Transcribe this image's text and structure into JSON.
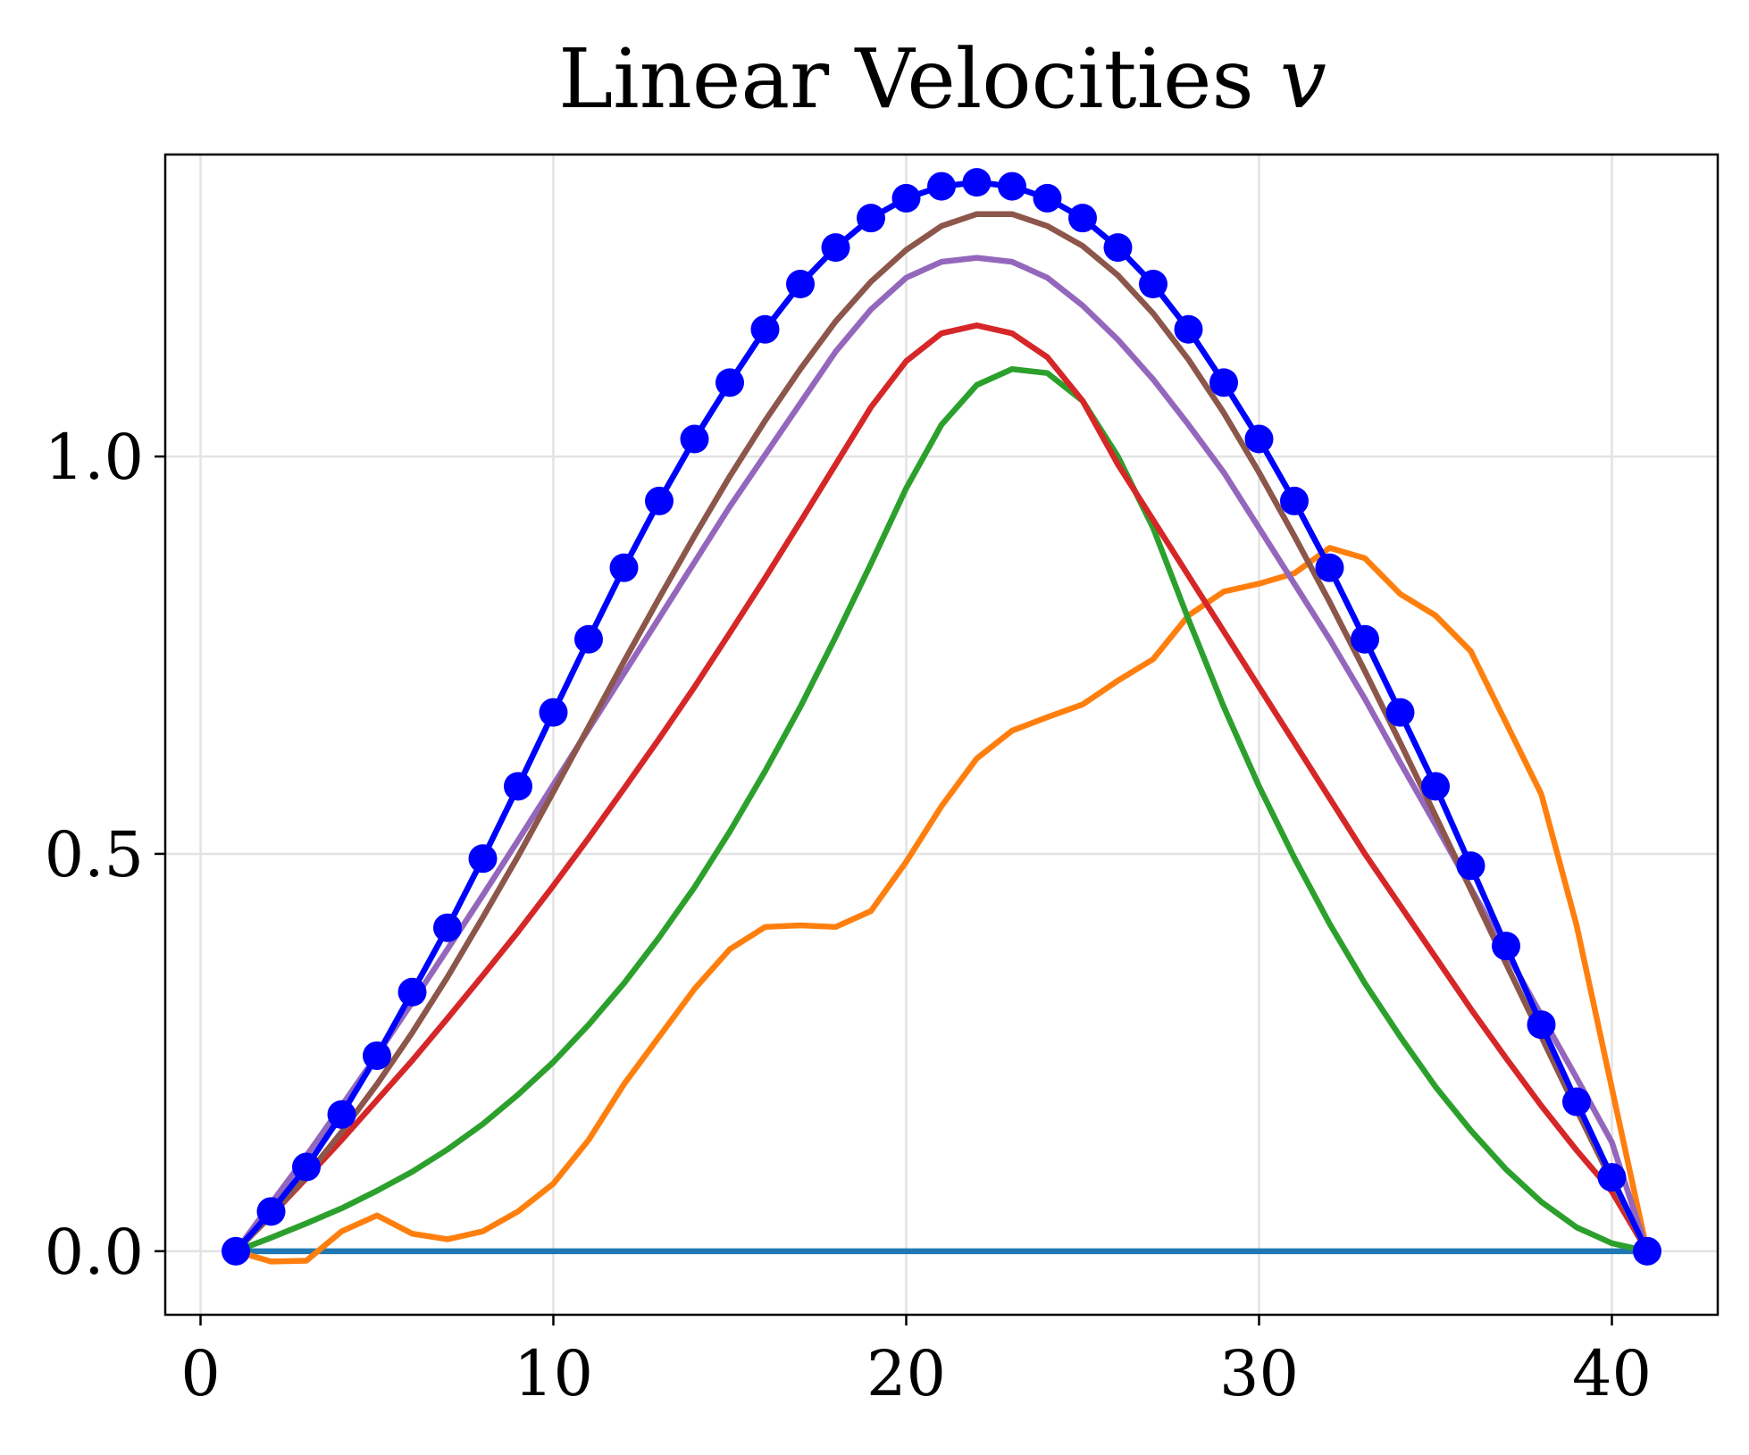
{
  "chart_data": {
    "type": "line",
    "title": "Linear Velocities",
    "title_variable": "v",
    "xlabel": "",
    "ylabel": "",
    "xlim": [
      -1,
      43
    ],
    "ylim": [
      -0.08,
      1.38
    ],
    "xticks": [
      0,
      10,
      20,
      30,
      40
    ],
    "yticks": [
      0.0,
      0.5,
      1.0
    ],
    "xtick_labels": [
      "0",
      "10",
      "20",
      "30",
      "40"
    ],
    "ytick_labels": [
      "0.0",
      "0.5",
      "1.0"
    ],
    "grid": true,
    "legend": "none",
    "x": [
      1,
      2,
      3,
      4,
      5,
      6,
      7,
      8,
      9,
      10,
      11,
      12,
      13,
      14,
      15,
      16,
      17,
      18,
      19,
      20,
      21,
      22,
      23,
      24,
      25,
      26,
      27,
      28,
      29,
      30,
      31,
      32,
      33,
      34,
      35,
      36,
      37,
      38,
      39,
      40,
      41
    ],
    "series": [
      {
        "color": "#1f77b4",
        "values": [
          0,
          0,
          0,
          0,
          0,
          0,
          0,
          0,
          0,
          0,
          0,
          0,
          0,
          0,
          0,
          0,
          0,
          0,
          0,
          0,
          0,
          0,
          0,
          0,
          0,
          0,
          0,
          0,
          0,
          0,
          0,
          0,
          0,
          0,
          0,
          0,
          0,
          0,
          0,
          0,
          0
        ]
      },
      {
        "color": "#ff7f0e",
        "values": [
          0,
          -0.013,
          -0.012,
          0.025,
          0.045,
          0.022,
          0.015,
          0.025,
          0.05,
          0.085,
          0.14,
          0.21,
          0.27,
          0.33,
          0.38,
          0.408,
          0.41,
          0.408,
          0.428,
          0.49,
          0.56,
          0.62,
          0.655,
          0.672,
          0.688,
          0.718,
          0.745,
          0.8,
          0.83,
          0.84,
          0.853,
          0.885,
          0.872,
          0.827,
          0.8,
          0.755,
          0.665,
          0.575,
          0.41,
          0.205,
          0
        ]
      },
      {
        "color": "#2ca02c",
        "values": [
          0,
          0.017,
          0.035,
          0.054,
          0.076,
          0.1,
          0.128,
          0.16,
          0.197,
          0.238,
          0.285,
          0.337,
          0.395,
          0.458,
          0.528,
          0.604,
          0.685,
          0.773,
          0.865,
          0.96,
          1.04,
          1.09,
          1.11,
          1.105,
          1.07,
          1.0,
          0.91,
          0.795,
          0.685,
          0.585,
          0.495,
          0.412,
          0.337,
          0.27,
          0.207,
          0.152,
          0.103,
          0.062,
          0.03,
          0.01,
          0
        ]
      },
      {
        "color": "#d62728",
        "values": [
          0,
          0.045,
          0.092,
          0.14,
          0.19,
          0.24,
          0.293,
          0.347,
          0.402,
          0.46,
          0.52,
          0.582,
          0.645,
          0.71,
          0.778,
          0.847,
          0.918,
          0.99,
          1.062,
          1.12,
          1.155,
          1.165,
          1.155,
          1.125,
          1.07,
          0.99,
          0.92,
          0.85,
          0.78,
          0.71,
          0.64,
          0.57,
          0.5,
          0.435,
          0.37,
          0.305,
          0.243,
          0.183,
          0.127,
          0.075,
          0
        ]
      },
      {
        "color": "#9467bd",
        "values": [
          0,
          0.06,
          0.12,
          0.183,
          0.247,
          0.313,
          0.38,
          0.448,
          0.517,
          0.587,
          0.657,
          0.727,
          0.797,
          0.867,
          0.937,
          1.002,
          1.067,
          1.132,
          1.185,
          1.225,
          1.245,
          1.25,
          1.245,
          1.225,
          1.19,
          1.147,
          1.097,
          1.04,
          0.98,
          0.91,
          0.84,
          0.77,
          0.695,
          0.615,
          0.537,
          0.457,
          0.377,
          0.297,
          0.218,
          0.137,
          0
        ]
      },
      {
        "color": "#8c564b",
        "values": [
          0,
          0.045,
          0.095,
          0.15,
          0.21,
          0.275,
          0.345,
          0.42,
          0.497,
          0.578,
          0.66,
          0.742,
          0.822,
          0.9,
          0.975,
          1.045,
          1.11,
          1.17,
          1.22,
          1.26,
          1.29,
          1.305,
          1.305,
          1.29,
          1.265,
          1.228,
          1.18,
          1.122,
          1.055,
          0.98,
          0.9,
          0.817,
          0.73,
          0.64,
          0.548,
          0.455,
          0.362,
          0.27,
          0.178,
          0.088,
          0
        ]
      },
      {
        "color": "#17becf",
        "values": [
          0,
          0.05,
          0.106,
          0.172,
          0.246,
          0.326,
          0.407,
          0.494,
          0.585,
          0.678,
          0.77,
          0.86,
          0.944,
          1.022,
          1.093,
          1.16,
          1.217,
          1.263,
          1.3,
          1.325,
          1.34,
          1.345,
          1.34,
          1.325,
          1.3,
          1.263,
          1.217,
          1.16,
          1.093,
          1.022,
          0.944,
          0.86,
          0.77,
          0.678,
          0.585,
          0.485,
          0.384,
          0.285,
          0.188,
          0.093,
          0
        ]
      },
      {
        "color": "#0000ff",
        "marker": "circle",
        "values": [
          0,
          0.05,
          0.106,
          0.172,
          0.246,
          0.326,
          0.407,
          0.494,
          0.585,
          0.678,
          0.77,
          0.86,
          0.944,
          1.022,
          1.093,
          1.16,
          1.217,
          1.263,
          1.3,
          1.325,
          1.34,
          1.345,
          1.34,
          1.325,
          1.3,
          1.263,
          1.217,
          1.16,
          1.093,
          1.022,
          0.944,
          0.86,
          0.77,
          0.678,
          0.585,
          0.485,
          0.384,
          0.285,
          0.188,
          0.093,
          0
        ]
      }
    ]
  }
}
